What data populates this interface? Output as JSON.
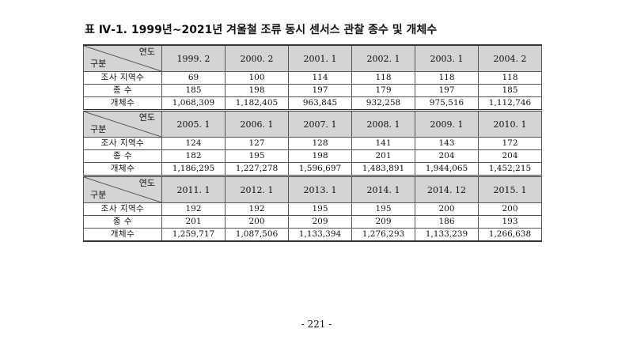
{
  "title": "표 Ⅳ-1. 1999년~2021년 겨울철 조류 동시 센서스 관찰 종수 및 개체수",
  "corner": {
    "year_label": "연도",
    "category_label": "구분"
  },
  "row_labels": {
    "regions": "조사 지역수",
    "species": "종   수",
    "individuals": "개체수"
  },
  "blocks": [
    {
      "years": [
        "1999. 2",
        "2000. 2",
        "2001. 1",
        "2002. 1",
        "2003. 1",
        "2004. 2"
      ],
      "regions": [
        "69",
        "100",
        "114",
        "118",
        "118",
        "118"
      ],
      "species": [
        "185",
        "198",
        "197",
        "179",
        "197",
        "185"
      ],
      "individuals": [
        "1,068,309",
        "1,182,405",
        "963,845",
        "932,258",
        "975,516",
        "1,112,746"
      ]
    },
    {
      "years": [
        "2005. 1",
        "2006. 1",
        "2007. 1",
        "2008. 1",
        "2009. 1",
        "2010. 1"
      ],
      "regions": [
        "124",
        "127",
        "128",
        "141",
        "143",
        "172"
      ],
      "species": [
        "182",
        "195",
        "198",
        "201",
        "204",
        "204"
      ],
      "individuals": [
        "1,186,295",
        "1,227,278",
        "1,596,697",
        "1,483,891",
        "1,944,065",
        "1,452,215"
      ]
    },
    {
      "years": [
        "2011. 1",
        "2012. 1",
        "2013. 1",
        "2014. 1",
        "2014. 12",
        "2015. 1"
      ],
      "regions": [
        "192",
        "192",
        "195",
        "195",
        "200",
        "200"
      ],
      "species": [
        "201",
        "200",
        "209",
        "209",
        "186",
        "193"
      ],
      "individuals": [
        "1,259,717",
        "1,087,506",
        "1,133,394",
        "1,276,293",
        "1,133,239",
        "1,266,638"
      ]
    }
  ],
  "page_number": "- 221 -"
}
